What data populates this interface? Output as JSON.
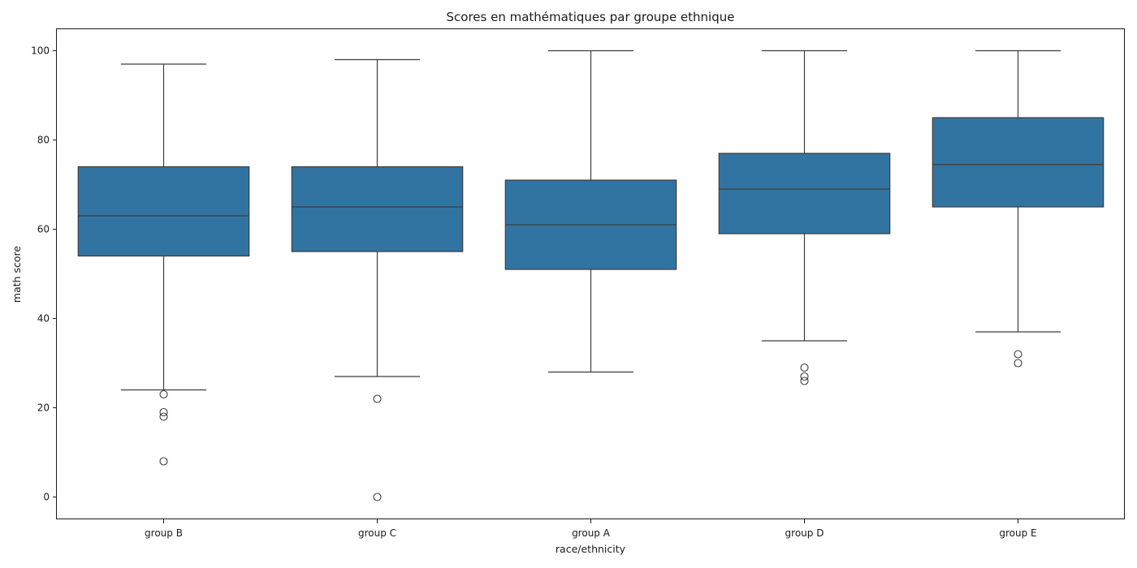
{
  "chart_data": {
    "type": "box",
    "title": "Scores en mathématiques par groupe ethnique",
    "xlabel": "race/ethnicity",
    "ylabel": "math score",
    "ylim": [
      -5,
      105
    ],
    "yticks": [
      0,
      20,
      40,
      60,
      80,
      100
    ],
    "grid": false,
    "legend": "none",
    "box_color": "#3274a1",
    "line_color": "#3d3d3d",
    "categories": [
      "group B",
      "group C",
      "group A",
      "group D",
      "group E"
    ],
    "boxes": [
      {
        "category": "group B",
        "whisker_low": 24,
        "q1": 54,
        "median": 63,
        "q3": 74,
        "whisker_high": 97,
        "outliers": [
          23,
          19,
          18,
          8
        ]
      },
      {
        "category": "group C",
        "whisker_low": 27,
        "q1": 55,
        "median": 65,
        "q3": 74,
        "whisker_high": 98,
        "outliers": [
          22,
          0
        ]
      },
      {
        "category": "group A",
        "whisker_low": 28,
        "q1": 51,
        "median": 61,
        "q3": 71,
        "whisker_high": 100,
        "outliers": []
      },
      {
        "category": "group D",
        "whisker_low": 35,
        "q1": 59,
        "median": 69,
        "q3": 77,
        "whisker_high": 100,
        "outliers": [
          29,
          27,
          26
        ]
      },
      {
        "category": "group E",
        "whisker_low": 37,
        "q1": 65,
        "median": 74.5,
        "q3": 85,
        "whisker_high": 100,
        "outliers": [
          32,
          30
        ]
      }
    ]
  }
}
